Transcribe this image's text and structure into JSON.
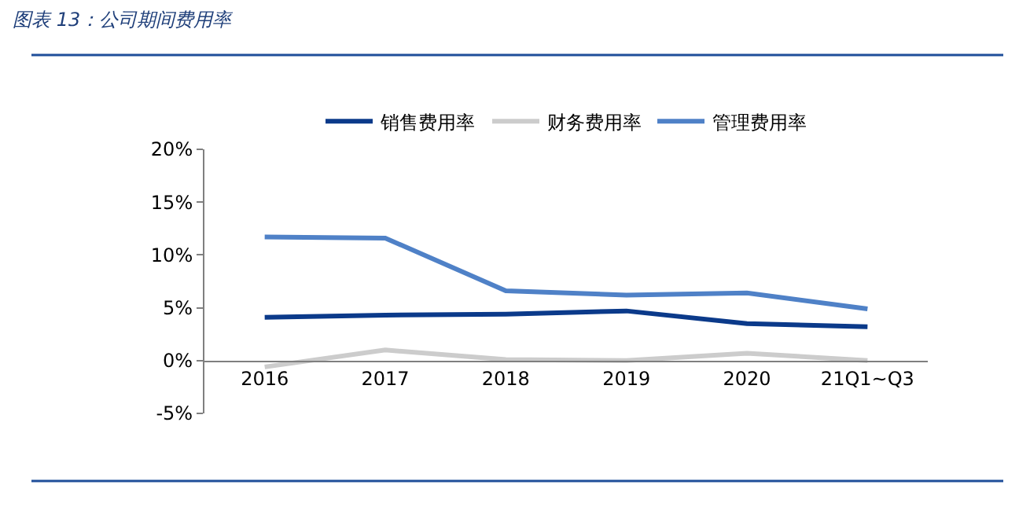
{
  "chart_data": {
    "type": "line",
    "title": "图表 13：公司期间费用率",
    "categories": [
      "2016",
      "2017",
      "2018",
      "2019",
      "2020",
      "21Q1~Q3"
    ],
    "series": [
      {
        "name": "销售费用率",
        "color": "#0b3a8a",
        "values": [
          4.1,
          4.3,
          4.4,
          4.7,
          3.5,
          3.2
        ]
      },
      {
        "name": "财务费用率",
        "color": "#cccccc",
        "values": [
          -0.6,
          1.0,
          0.1,
          0.0,
          0.7,
          0.0
        ]
      },
      {
        "name": "管理费用率",
        "color": "#4f81c7",
        "values": [
          11.7,
          11.6,
          6.6,
          6.2,
          6.4,
          4.9
        ]
      }
    ],
    "ylim": [
      -5,
      20
    ],
    "yticks": [
      {
        "value": -5,
        "label": "-5%"
      },
      {
        "value": 0,
        "label": "0%"
      },
      {
        "value": 5,
        "label": "5%"
      },
      {
        "value": 10,
        "label": "10%"
      },
      {
        "value": 15,
        "label": "15%"
      },
      {
        "value": 20,
        "label": "20%"
      }
    ],
    "legend": "top",
    "marker": "none",
    "line_style": "solid"
  }
}
